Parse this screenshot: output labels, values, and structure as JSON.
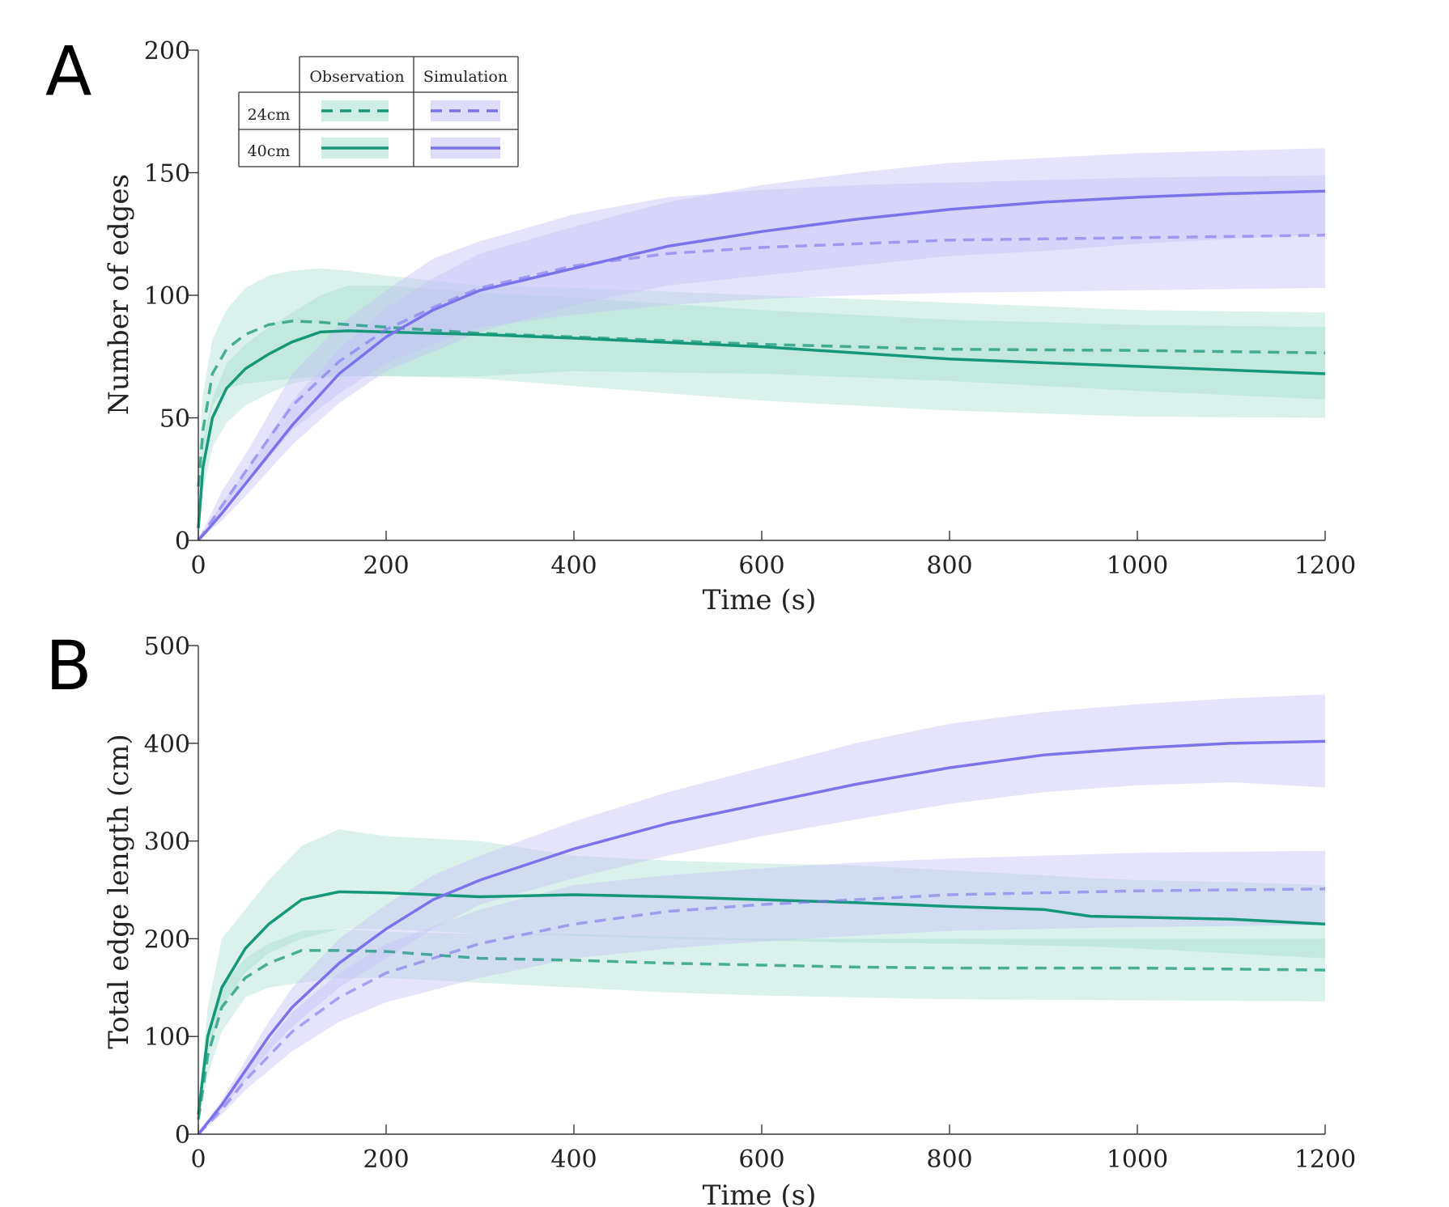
{
  "colors": {
    "observation": "#15977a",
    "observation_band": "#93d7c4",
    "simulation": "#7b72ec",
    "simulation_band": "#c3bff8"
  },
  "chart_data": [
    {
      "panel": "A",
      "type": "line",
      "xlabel": "Time (s)",
      "ylabel": "Number of edges",
      "xlim": [
        0,
        1200
      ],
      "ylim": [
        0,
        200
      ],
      "x_ticks": [
        0,
        200,
        400,
        600,
        800,
        1000,
        1200
      ],
      "y_ticks": [
        0,
        50,
        100,
        150,
        200
      ],
      "grid": false,
      "legend": {
        "placement": "top-left",
        "col_headers": [
          "Observation",
          "Simulation"
        ],
        "row_labels": [
          "24cm",
          "40cm"
        ]
      },
      "series": [
        {
          "name": "Observation 24cm",
          "source": "observation",
          "style": "dashed",
          "x": [
            0,
            5,
            15,
            30,
            50,
            75,
            100,
            130,
            160,
            200,
            300,
            400,
            600,
            800,
            1000,
            1200
          ],
          "mean": [
            22,
            45,
            68,
            78,
            84,
            88,
            89.5,
            89,
            88,
            87,
            84.5,
            83,
            80,
            78,
            77.5,
            76.5
          ],
          "lower": [
            15,
            35,
            55,
            62,
            64,
            65,
            66,
            67,
            67,
            67,
            66,
            63,
            57,
            53,
            50.5,
            50
          ],
          "upper": [
            35,
            60,
            82,
            94,
            103,
            108,
            110,
            111,
            110,
            108,
            104,
            103,
            100,
            97,
            94,
            93
          ]
        },
        {
          "name": "Observation 40cm",
          "source": "observation",
          "style": "solid",
          "x": [
            0,
            5,
            15,
            30,
            50,
            75,
            100,
            130,
            160,
            200,
            300,
            400,
            600,
            800,
            1000,
            1200
          ],
          "mean": [
            5,
            30,
            50,
            62,
            70,
            76,
            81,
            85,
            85.5,
            85,
            84,
            82.5,
            79,
            74,
            71,
            68
          ],
          "lower": [
            2,
            20,
            38,
            48,
            55,
            60,
            64,
            66,
            67,
            67,
            67,
            69,
            68,
            65,
            61,
            57.5
          ],
          "upper": [
            10,
            40,
            58,
            72,
            80,
            87,
            93,
            100,
            104,
            104,
            101,
            99,
            94,
            90,
            88,
            87
          ]
        },
        {
          "name": "Simulation 24cm",
          "source": "simulation",
          "style": "dashed",
          "x": [
            0,
            25,
            50,
            100,
            150,
            200,
            250,
            300,
            400,
            500,
            600,
            700,
            800,
            900,
            1000,
            1100,
            1200
          ],
          "mean": [
            0,
            14,
            28,
            55,
            73,
            86,
            95,
            103,
            112,
            117,
            119.5,
            121,
            122.5,
            123,
            123.5,
            124,
            124.5
          ],
          "lower": [
            0,
            10,
            22,
            45,
            60,
            72,
            80,
            87,
            92,
            96,
            98.5,
            100,
            101,
            101.5,
            102,
            102.5,
            103
          ],
          "upper": [
            0,
            20,
            35,
            68,
            88,
            102,
            115,
            122,
            133,
            140,
            143,
            145,
            146,
            147,
            148,
            148.5,
            149
          ]
        },
        {
          "name": "Simulation 40cm",
          "source": "simulation",
          "style": "solid",
          "x": [
            0,
            25,
            50,
            100,
            150,
            200,
            250,
            300,
            400,
            500,
            600,
            700,
            800,
            900,
            1000,
            1100,
            1200
          ],
          "mean": [
            0,
            11,
            23,
            47,
            68,
            83,
            94,
            102,
            111,
            120,
            126,
            131,
            135,
            138,
            140,
            141.5,
            142.5
          ],
          "lower": [
            0,
            8,
            18,
            39,
            56,
            69,
            77,
            85,
            96,
            104,
            108,
            112,
            116,
            118,
            121,
            123,
            125
          ],
          "upper": [
            0,
            15,
            28,
            57,
            78,
            95,
            107,
            117,
            128,
            138,
            145,
            150,
            154,
            156,
            158,
            159,
            160
          ]
        }
      ]
    },
    {
      "panel": "B",
      "type": "line",
      "xlabel": "Time (s)",
      "ylabel": "Total edge length (cm)",
      "xlim": [
        0,
        1200
      ],
      "ylim": [
        0,
        500
      ],
      "x_ticks": [
        0,
        200,
        400,
        600,
        800,
        1000,
        1200
      ],
      "y_ticks": [
        0,
        100,
        200,
        300,
        400,
        500
      ],
      "grid": false,
      "series": [
        {
          "name": "Observation 24cm",
          "source": "observation",
          "style": "dashed",
          "x": [
            0,
            10,
            25,
            50,
            75,
            110,
            150,
            200,
            300,
            400,
            500,
            600,
            700,
            800,
            1000,
            1200
          ],
          "mean": [
            15,
            80,
            130,
            160,
            175,
            188,
            188,
            187,
            180,
            178,
            175,
            173,
            171,
            170,
            170,
            168
          ],
          "lower": [
            10,
            60,
            105,
            140,
            150,
            155,
            160,
            160,
            155,
            150,
            145,
            142,
            140,
            138,
            137,
            136
          ],
          "upper": [
            20,
            100,
            150,
            180,
            195,
            208,
            210,
            207,
            205,
            205,
            202,
            200,
            200,
            200,
            200,
            200
          ]
        },
        {
          "name": "Observation 40cm",
          "source": "observation",
          "style": "solid",
          "x": [
            0,
            10,
            25,
            50,
            75,
            110,
            150,
            200,
            300,
            400,
            500,
            600,
            700,
            800,
            900,
            950,
            1000,
            1100,
            1200
          ],
          "mean": [
            20,
            100,
            150,
            190,
            215,
            240,
            248,
            247,
            243,
            245,
            243,
            240,
            237,
            233,
            230,
            223,
            222,
            220,
            215
          ],
          "lower": [
            15,
            80,
            130,
            165,
            185,
            200,
            210,
            210,
            205,
            203,
            200,
            198,
            196,
            195,
            193,
            192,
            190,
            185,
            180
          ],
          "upper": [
            30,
            130,
            200,
            230,
            260,
            295,
            312,
            305,
            300,
            285,
            280,
            277,
            275,
            270,
            265,
            262,
            260,
            258,
            255
          ]
        },
        {
          "name": "Simulation 24cm",
          "source": "simulation",
          "style": "dashed",
          "x": [
            0,
            25,
            50,
            75,
            100,
            150,
            200,
            300,
            400,
            500,
            600,
            700,
            800,
            900,
            1000,
            1100,
            1200
          ],
          "mean": [
            0,
            25,
            55,
            80,
            105,
            140,
            165,
            195,
            215,
            228,
            235,
            240,
            245,
            247,
            249,
            250,
            251
          ],
          "lower": [
            0,
            20,
            45,
            65,
            85,
            115,
            135,
            160,
            180,
            190,
            197,
            203,
            208,
            210,
            212,
            213,
            214
          ],
          "upper": [
            0,
            30,
            65,
            95,
            125,
            165,
            195,
            230,
            255,
            265,
            272,
            278,
            282,
            285,
            288,
            289,
            290
          ]
        },
        {
          "name": "Simulation 40cm",
          "source": "simulation",
          "style": "solid",
          "x": [
            0,
            25,
            50,
            75,
            100,
            150,
            200,
            250,
            300,
            400,
            500,
            600,
            700,
            800,
            900,
            1000,
            1100,
            1200
          ],
          "mean": [
            0,
            30,
            65,
            100,
            130,
            175,
            210,
            240,
            260,
            292,
            318,
            338,
            358,
            375,
            388,
            395,
            400,
            402
          ],
          "lower": [
            0,
            25,
            55,
            85,
            110,
            150,
            180,
            210,
            235,
            262,
            285,
            305,
            322,
            338,
            350,
            357,
            360,
            355
          ],
          "upper": [
            0,
            35,
            75,
            115,
            150,
            200,
            235,
            265,
            285,
            320,
            350,
            375,
            400,
            420,
            432,
            440,
            446,
            450
          ]
        }
      ]
    }
  ]
}
